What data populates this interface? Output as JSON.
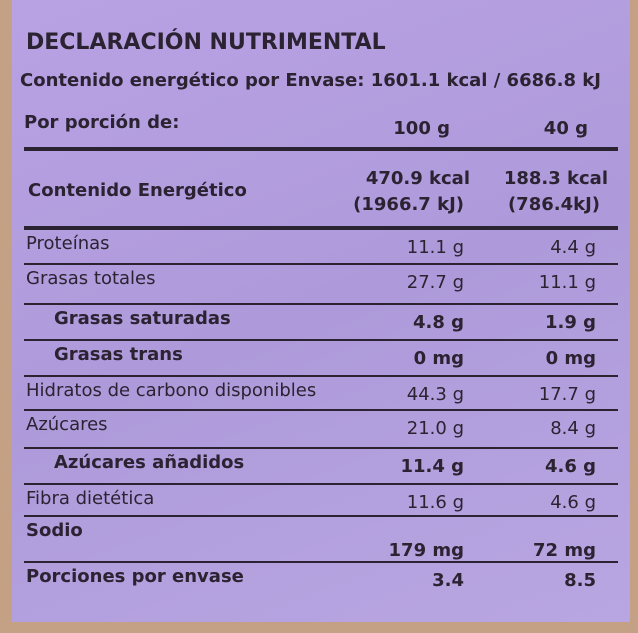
{
  "header": {
    "title": "DECLARACIÓN NUTRIMENTAL",
    "subtitle": "Contenido energético por Envase: 1601.1 kcal / 6686.8 kJ"
  },
  "table": {
    "columns": [
      "Por porción de:",
      "100 g",
      "40 g"
    ],
    "energy": {
      "label": "Contenido Energético",
      "col1": [
        "470.9 kcal",
        "(1966.7 kJ)"
      ],
      "col2": [
        "188.3 kcal",
        "(786.4kJ)"
      ]
    },
    "rows": [
      [
        "Proteínas",
        "11.1 g",
        "4.4 g"
      ],
      [
        "Grasas totales",
        "27.7 g",
        "11.1 g"
      ],
      [
        "Grasas saturadas",
        "4.8 g",
        "1.9 g"
      ],
      [
        "Grasas trans",
        "0 mg",
        "0 mg"
      ],
      [
        "Hidratos de carbono disponibles",
        "44.3 g",
        "17.7 g"
      ],
      [
        "Azúcares",
        "21.0 g",
        "8.4 g"
      ],
      [
        "Azúcares añadidos",
        "11.4 g",
        "4.6 g"
      ],
      [
        "Fibra dietética",
        "11.6 g",
        "4.6 g"
      ],
      [
        "Sodio",
        "179 mg",
        "72 mg"
      ],
      [
        "Porciones por envase",
        "3.4",
        "8.5"
      ]
    ]
  }
}
